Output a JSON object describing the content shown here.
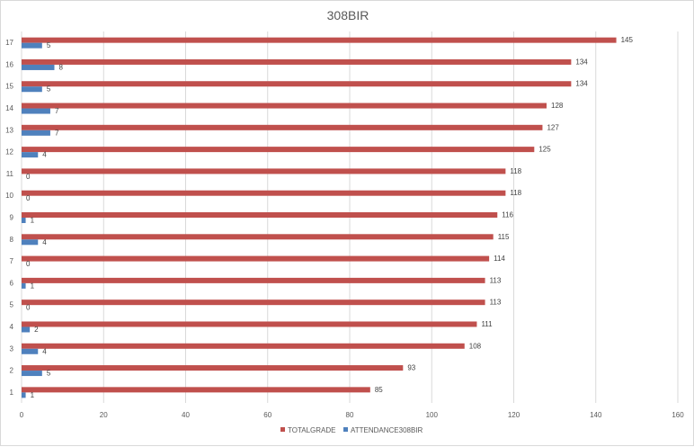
{
  "chart_data": {
    "type": "bar",
    "orientation": "horizontal",
    "title": "308BIR",
    "categories": [
      "1",
      "2",
      "3",
      "4",
      "5",
      "6",
      "7",
      "8",
      "9",
      "10",
      "11",
      "12",
      "13",
      "14",
      "15",
      "16",
      "17"
    ],
    "series": [
      {
        "name": "TOTALGRADE",
        "color": "#c0504d",
        "values": [
          85,
          93,
          108,
          111,
          113,
          113,
          114,
          115,
          116,
          118,
          118,
          125,
          127,
          128,
          134,
          134,
          145
        ]
      },
      {
        "name": "ATTENDANCE308BIR",
        "color": "#4f81bd",
        "values": [
          1,
          5,
          4,
          2,
          0,
          1,
          0,
          4,
          1,
          0,
          0,
          4,
          7,
          7,
          5,
          8,
          5
        ]
      }
    ],
    "xlim": [
      0,
      160
    ],
    "xticks": [
      0,
      20,
      40,
      60,
      80,
      100,
      120,
      140,
      160
    ],
    "grid": true,
    "legend_position": "bottom"
  }
}
